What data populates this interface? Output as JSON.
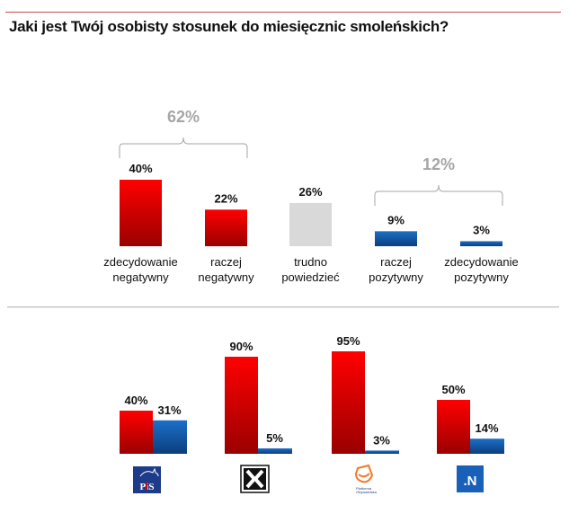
{
  "title": "Jaki jest Twój osobisty stosunek do miesięcznic smoleńskich?",
  "colors": {
    "negative": "#e00000",
    "negative_dark": "#a00000",
    "positive": "#1a6bc4",
    "positive_dark": "#0a3f80",
    "neutral": "#d9d9d9",
    "group_label": "#a6a6a6",
    "rule": "#c0504d"
  },
  "chart_data": [
    {
      "type": "bar",
      "title": "Jaki jest Twój osobisty stosunek do miesięcznic smoleńskich?",
      "categories": [
        [
          "zdecydowanie",
          "negatywny"
        ],
        [
          "raczej",
          "negatywny"
        ],
        [
          "trudno",
          "powiedzieć"
        ],
        [
          "raczej",
          "pozytywny"
        ],
        [
          "zdecydowanie",
          "pozytywny"
        ]
      ],
      "values": [
        40,
        22,
        26,
        9,
        3
      ],
      "value_labels": [
        "40%",
        "22%",
        "26%",
        "9%",
        "3%"
      ],
      "color_keys": [
        "negative",
        "negative",
        "neutral",
        "positive",
        "positive"
      ],
      "groups": [
        {
          "label": "62%",
          "from": 0,
          "to": 1
        },
        {
          "label": "12%",
          "from": 3,
          "to": 4
        }
      ],
      "unit": "%",
      "xlabel": "",
      "ylabel": "",
      "grid": false
    },
    {
      "type": "bar",
      "categories": [
        "PiS",
        "Kukiz'15",
        "Platforma Obywatelska",
        "Nowoczesna"
      ],
      "category_icons": [
        "pis-logo",
        "kukiz-logo",
        "po-logo",
        "nowoczesna-logo"
      ],
      "series": [
        {
          "name": "negatywny",
          "color_key": "negative",
          "values": [
            40,
            90,
            95,
            50
          ],
          "labels": [
            "40%",
            "90%",
            "95%",
            "50%"
          ]
        },
        {
          "name": "pozytywny",
          "color_key": "positive",
          "values": [
            31,
            5,
            3,
            14
          ],
          "labels": [
            "31%",
            "5%",
            "3%",
            "14%"
          ]
        }
      ],
      "unit": "%",
      "xlabel": "",
      "ylabel": "",
      "grid": false,
      "legend": "none"
    }
  ],
  "logos": {
    "pis_text": "PiS",
    "nowoczesna_text": ".N",
    "po_text": [
      "Platforma",
      "Obywatelska"
    ]
  }
}
